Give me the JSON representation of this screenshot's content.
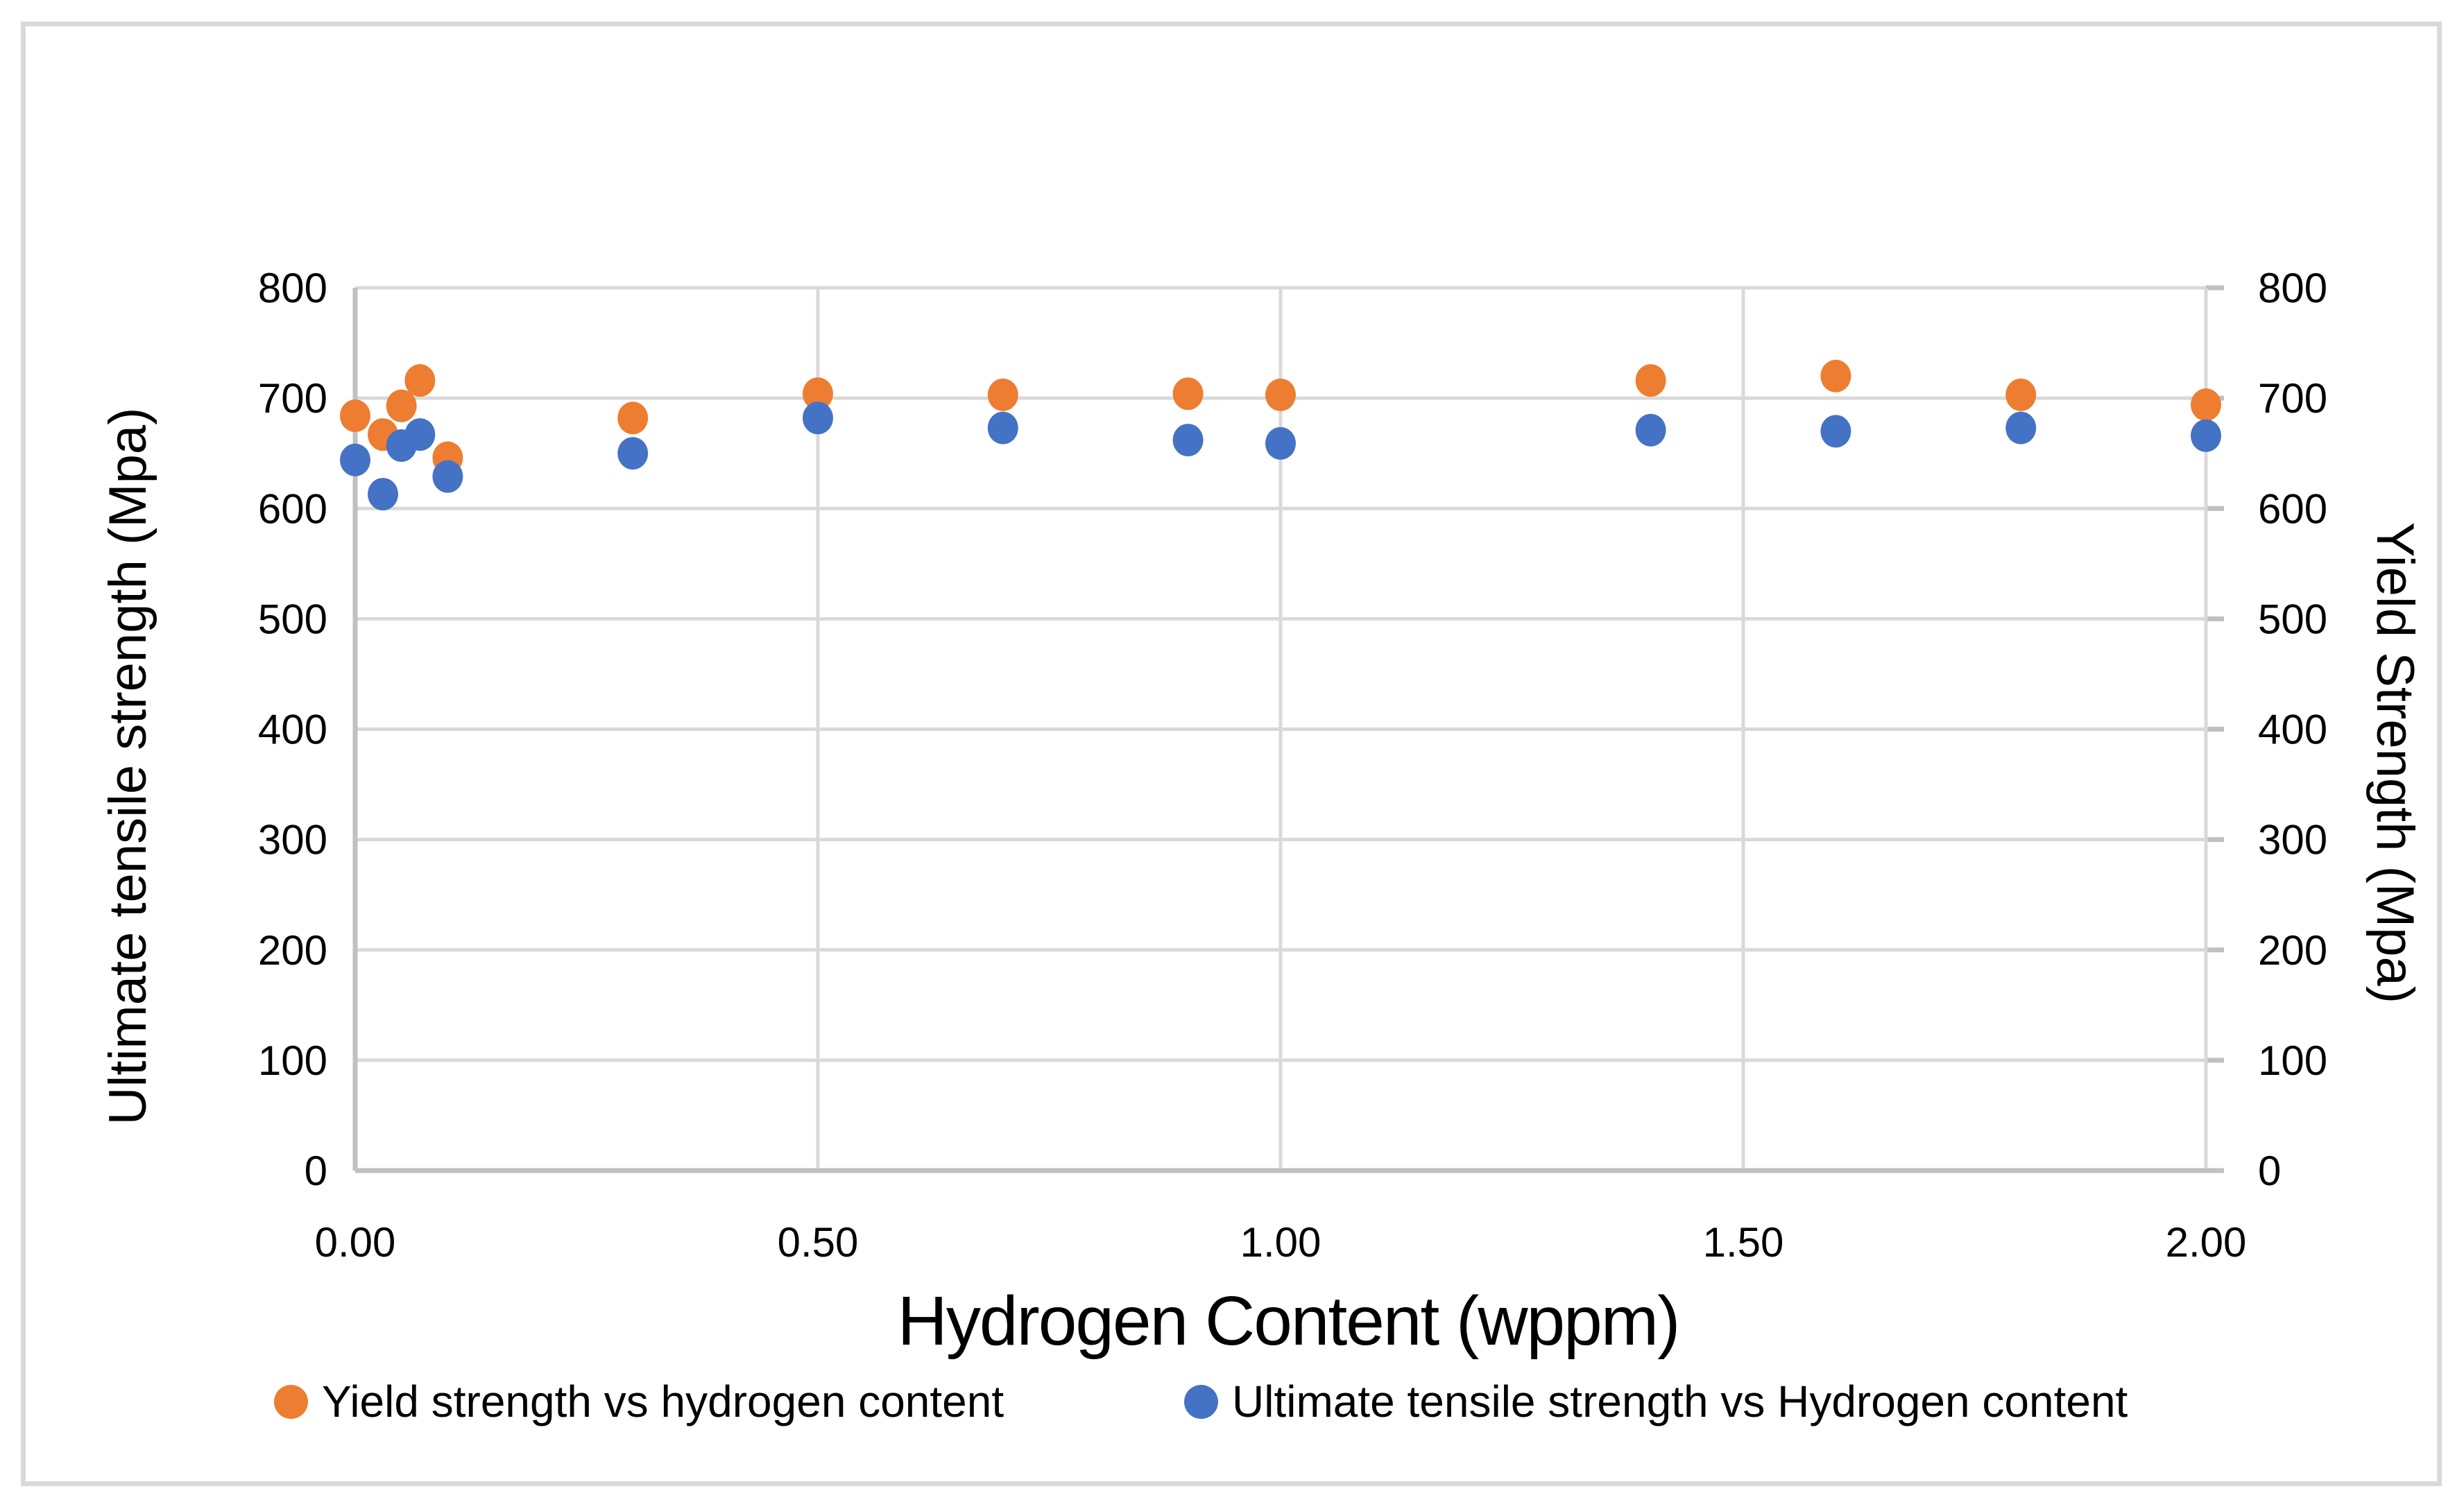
{
  "chart_data": {
    "type": "scatter",
    "title": "",
    "xlabel": "Hydrogen Content (wppm)",
    "ylabel_left": "Ultimate tensile strength (Mpa)",
    "ylabel_right": "Yield Strength (Mpa)",
    "xlim": [
      0,
      2.0
    ],
    "ylim": [
      0,
      800
    ],
    "x_ticks": [
      "0.00",
      "0.50",
      "1.00",
      "1.50",
      "2.00"
    ],
    "y_ticks_left": [
      "0",
      "100",
      "200",
      "300",
      "400",
      "500",
      "600",
      "700",
      "800"
    ],
    "y_ticks_right": [
      "0",
      "100",
      "200",
      "300",
      "400",
      "500",
      "600",
      "700",
      "800"
    ],
    "grid": true,
    "legend_position": "bottom",
    "series": [
      {
        "name": "Yield strength vs hydrogen content",
        "color": "#ED7D31",
        "axis": "right",
        "x": [
          0.0,
          0.03,
          0.05,
          0.07,
          0.1,
          0.3,
          0.5,
          0.7,
          0.9,
          1.0,
          1.4,
          1.6,
          1.8,
          2.0
        ],
        "y": [
          684,
          667,
          693,
          716,
          646,
          682,
          704,
          703,
          704,
          703,
          716,
          720,
          703,
          694
        ]
      },
      {
        "name": "Ultimate tensile strength vs Hydrogen content",
        "color": "#4472C4",
        "axis": "left",
        "x": [
          0.0,
          0.03,
          0.05,
          0.07,
          0.1,
          0.3,
          0.5,
          0.7,
          0.9,
          1.0,
          1.4,
          1.6,
          1.8,
          2.0
        ],
        "y": [
          644,
          613,
          657,
          667,
          629,
          650,
          682,
          673,
          662,
          659,
          671,
          670,
          673,
          666
        ]
      }
    ]
  },
  "colors": {
    "gridline": "#D9D9D9",
    "axis_line": "#C0C0C0",
    "frame": "#D9D9D9",
    "text": "#000000"
  }
}
